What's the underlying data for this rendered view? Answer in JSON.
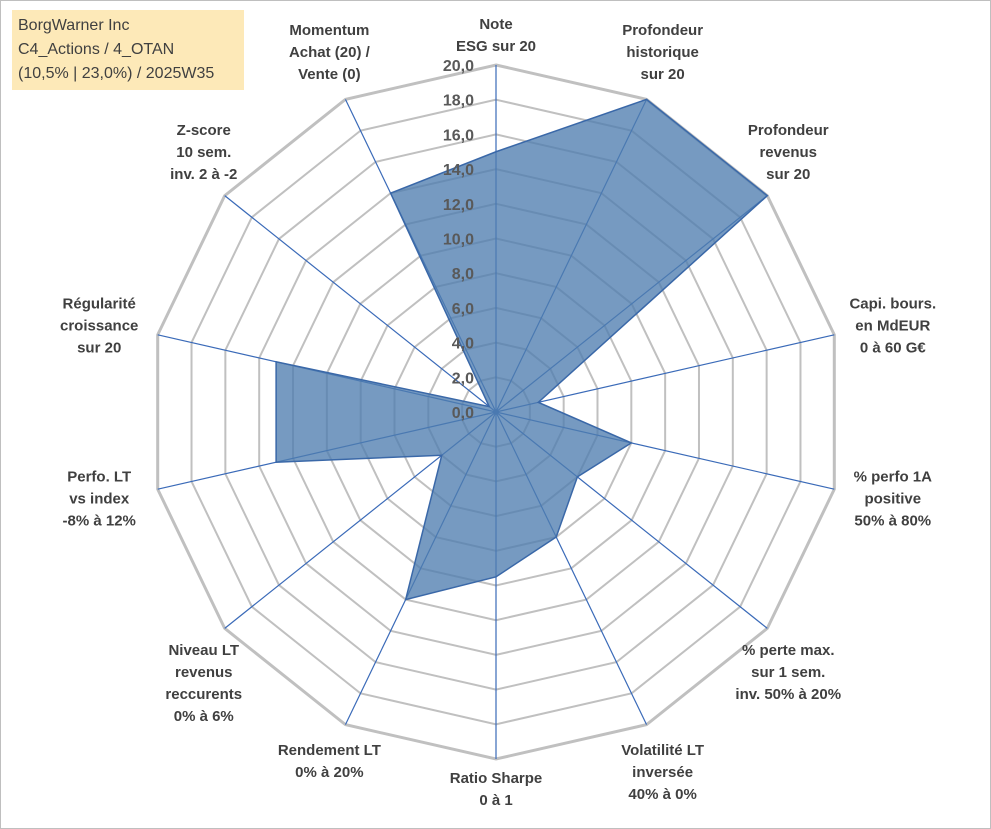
{
  "title_box": {
    "line1": "BorgWarner Inc",
    "line2": "C4_Actions / 4_OTAN",
    "line3": "(10,5% | 23,0%) / 2025W35"
  },
  "colors": {
    "fill": "#4f7db0",
    "stroke": "#3a68a8",
    "grid": "#c0c0c0",
    "spoke": "#3a6ab8",
    "title_bg": "#fde9b8"
  },
  "chart_data": {
    "type": "radar",
    "scale": {
      "min": 0,
      "max": 20,
      "step": 2
    },
    "tick_labels": [
      "0,0",
      "2,0",
      "4,0",
      "6,0",
      "8,0",
      "10,0",
      "12,0",
      "14,0",
      "16,0",
      "18,0",
      "20,0"
    ],
    "grid": true,
    "axes": [
      {
        "label": [
          "Note",
          "ESG sur 20"
        ],
        "value": 15.0
      },
      {
        "label": [
          "Profondeur",
          "historique",
          "sur 20"
        ],
        "value": 20.0
      },
      {
        "label": [
          "Profondeur",
          "revenus",
          "sur 20"
        ],
        "value": 20.0
      },
      {
        "label": [
          "Capi. bours.",
          "en MdEUR",
          "0 à 60 G€"
        ],
        "value": 2.5
      },
      {
        "label": [
          "% perfo 1A",
          "positive",
          "50% à 80%"
        ],
        "value": 8.0
      },
      {
        "label": [
          "% perte max.",
          "sur 1 sem.",
          "inv. 50% à 20%"
        ],
        "value": 6.0
      },
      {
        "label": [
          "Volatilité LT",
          "inversée",
          "40% à 0%"
        ],
        "value": 8.0
      },
      {
        "label": [
          "Ratio Sharpe",
          "0 à 1"
        ],
        "value": 9.5
      },
      {
        "label": [
          "Rendement LT",
          "0% à 20%"
        ],
        "value": 12.0
      },
      {
        "label": [
          "Niveau LT",
          "revenus",
          "reccurents",
          "0% à 6%"
        ],
        "value": 4.0
      },
      {
        "label": [
          "Perfo. LT",
          "vs index",
          "-8% à 12%"
        ],
        "value": 13.0
      },
      {
        "label": [
          "Régularité",
          "croissance",
          "sur 20"
        ],
        "value": 13.0
      },
      {
        "label": [
          "Z-score",
          "10 sem.",
          "inv. 2 à -2"
        ],
        "value": 0.5
      },
      {
        "label": [
          "Momentum",
          "Achat (20) /",
          "Vente (0)"
        ],
        "value": 14.0
      }
    ]
  }
}
